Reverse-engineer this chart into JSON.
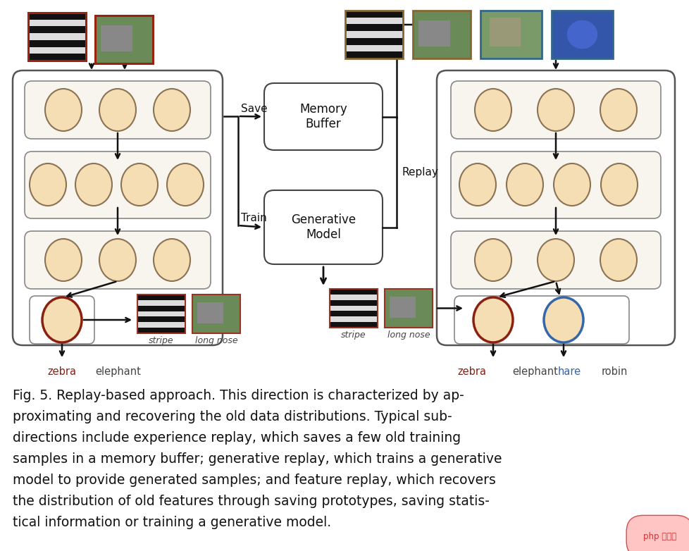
{
  "bg_color": "#ffffff",
  "node_fill": "#f5deb3",
  "node_edge_dark": "#8b7355",
  "node_edge_red": "#8b2010",
  "node_edge_blue": "#3366aa",
  "conn_red": "#cc4422",
  "conn_blue": "#6699cc",
  "caption_lines": [
    "Fig. 5. Replay-based approach. This direction is characterized by ap-",
    "proximating and recovering the old data distributions. Typical sub-",
    "directions include experience replay, which saves a few old training",
    "samples in a memory buffer; generative replay, which trains a generative",
    "model to provide generated samples; and feature replay, which recovers",
    "the distribution of old features through saving prototypes, saving statis-",
    "tical information or training a generative model."
  ],
  "memory_buffer_label": "Memory\nBuffer",
  "generative_model_label": "Generative\nModel",
  "save_label": "Save",
  "train_label": "Train",
  "replay_label": "Replay",
  "stripe_label": "stripe",
  "longnose_label": "long nose",
  "zebra_label": "zebra",
  "elephant_label": "elephant",
  "hare_label": "hare",
  "robin_label": "robin"
}
